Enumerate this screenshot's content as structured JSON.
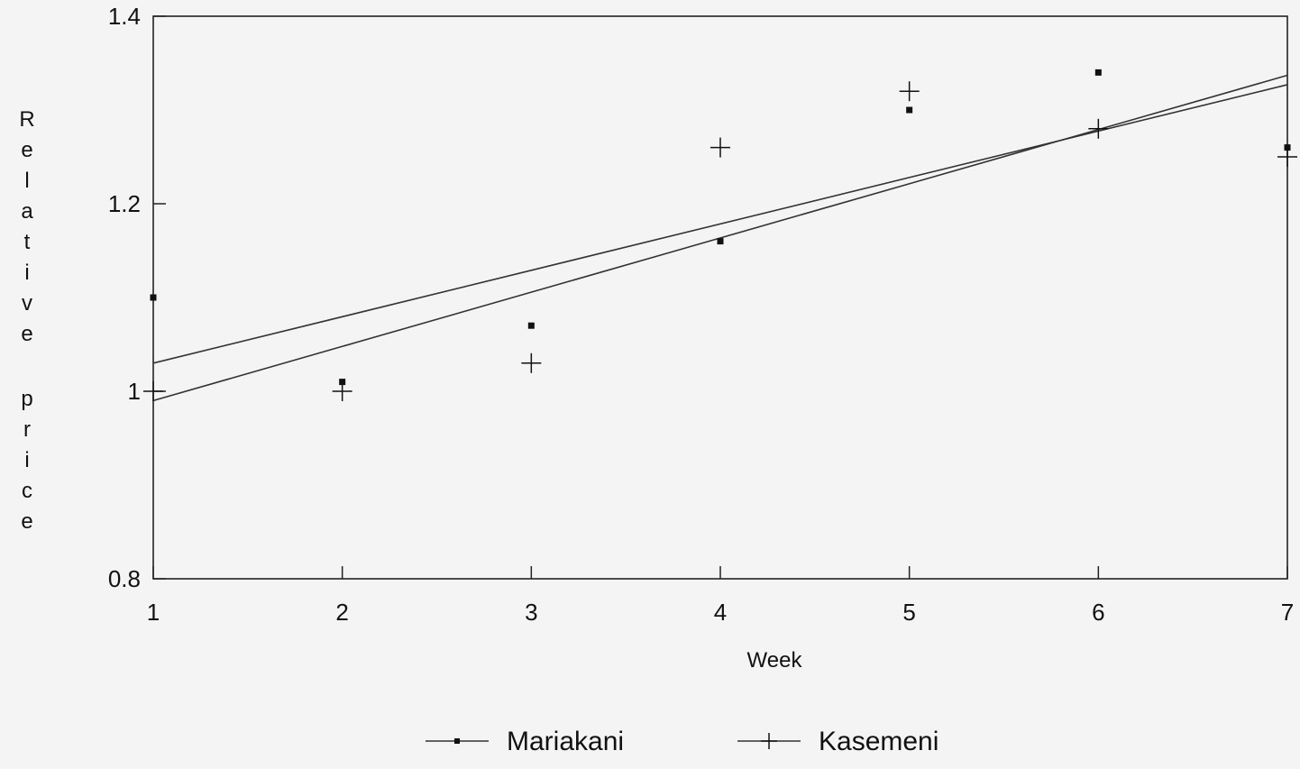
{
  "chart_data": {
    "type": "scatter",
    "title": "",
    "xlabel": "Week",
    "ylabel": "Relative price",
    "xlim": [
      1,
      7
    ],
    "ylim": [
      0.8,
      1.4
    ],
    "x_ticks": [
      "1",
      "2",
      "3",
      "4",
      "5",
      "6",
      "7"
    ],
    "y_ticks": [
      "0.8",
      "1",
      "1.2",
      "1.4"
    ],
    "grid": false,
    "legend_position": "bottom",
    "series": [
      {
        "name": "Mariakani",
        "marker": "square",
        "x": [
          1,
          2,
          3,
          4,
          5,
          6,
          7
        ],
        "y": [
          1.1,
          1.01,
          1.07,
          1.16,
          1.3,
          1.34,
          1.26
        ],
        "trend": {
          "x": [
            1,
            7
          ],
          "y": [
            1.03,
            1.327
          ]
        }
      },
      {
        "name": "Kasemeni",
        "marker": "plus",
        "x": [
          1,
          2,
          3,
          4,
          5,
          6,
          7
        ],
        "y": [
          1.0,
          1.0,
          1.03,
          1.26,
          1.32,
          1.28,
          1.25
        ],
        "trend": {
          "x": [
            1,
            7
          ],
          "y": [
            0.99,
            1.337
          ]
        }
      }
    ]
  }
}
